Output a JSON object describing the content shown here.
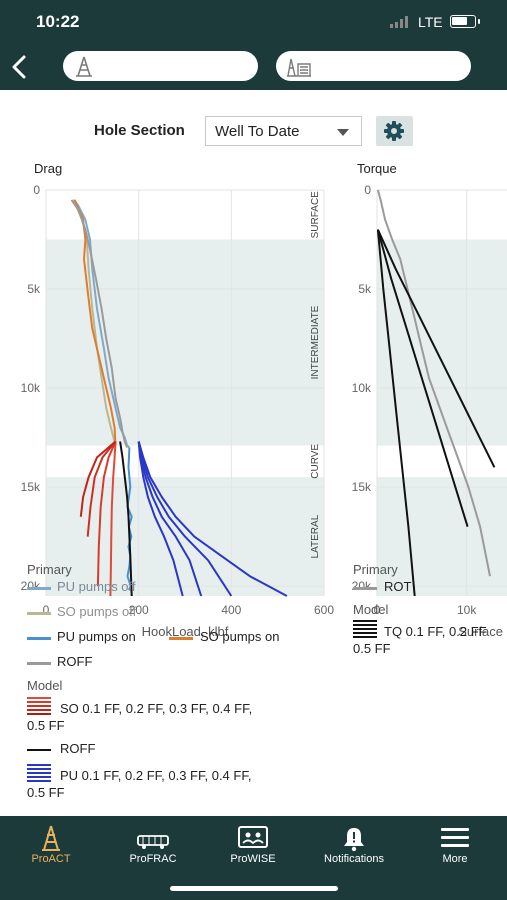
{
  "status_bar": {
    "time": "10:22",
    "network": "LTE"
  },
  "header": {
    "back_icon": "chevron-left-icon",
    "pill_icons": [
      "rig-icon",
      "well-site-icon"
    ]
  },
  "controls": {
    "hole_section_label": "Hole Section",
    "hole_section_value": "Well To Date"
  },
  "chart_data": [
    {
      "type": "line",
      "title": "Drag",
      "xlabel": "HookLoad, klbf",
      "ylabel": "",
      "x_ticks": [
        "0",
        "200",
        "400",
        "600"
      ],
      "y_ticks": [
        "0",
        "5k",
        "10k",
        "15k",
        "20k"
      ],
      "xlim": [
        0,
        600
      ],
      "ylim": [
        20500,
        0
      ],
      "y_reversed": true,
      "grid": true,
      "zones": [
        {
          "name": "SURFACE",
          "depth": [
            0,
            2500
          ]
        },
        {
          "name": "INTERMEDIATE",
          "depth": [
            2500,
            12900
          ]
        },
        {
          "name": "CURVE",
          "depth": [
            12900,
            14500
          ]
        },
        {
          "name": "LATERAL",
          "depth": [
            14500,
            20500
          ]
        }
      ],
      "series": [
        {
          "name": "PU pumps off",
          "color": "#7fa9cc",
          "x": [
            60,
            70,
            85,
            95,
            100,
            110,
            125,
            135,
            150,
            160,
            170,
            175,
            180
          ],
          "y": [
            500,
            800,
            1500,
            2500,
            4000,
            6000,
            8000,
            9500,
            11000,
            12000,
            12500,
            12900,
            13000
          ]
        },
        {
          "name": "SO pumps off",
          "color": "#b9b795",
          "x": [
            58,
            65,
            78,
            88,
            92,
            100,
            110,
            120,
            130,
            140,
            150
          ],
          "y": [
            500,
            800,
            1500,
            2500,
            4000,
            6000,
            8000,
            9500,
            11000,
            12000,
            12900
          ]
        },
        {
          "name": "PU pumps on",
          "color": "#4a90d0",
          "x": [
            180,
            178,
            182,
            176,
            185,
            179,
            184,
            178,
            182,
            180,
            176,
            183,
            179
          ],
          "y": [
            13000,
            14000,
            15000,
            16000,
            16500,
            17000,
            17500,
            18000,
            18500,
            19000,
            19500,
            20000,
            20200
          ]
        },
        {
          "name": "SO pumps on",
          "color": "#e07c2c",
          "x": [
            62,
            80,
            85,
            82,
            92,
            100,
            115,
            130,
            140,
            148,
            150
          ],
          "y": [
            500,
            1500,
            2500,
            3500,
            5500,
            7000,
            8500,
            10000,
            11000,
            12000,
            12900
          ]
        },
        {
          "name": "ROFF",
          "color": "#9a9a9a",
          "x": [
            55,
            70,
            85,
            95,
            108,
            120,
            130,
            142,
            150,
            160,
            165,
            170,
            175
          ],
          "y": [
            500,
            1000,
            2000,
            3000,
            4500,
            6000,
            7500,
            9000,
            10500,
            11500,
            12200,
            12700,
            13000
          ]
        },
        {
          "name": "SO 0.1 FF",
          "color": "#e04a3a",
          "x": [
            150,
            148,
            145,
            142,
            141,
            140,
            139
          ],
          "y": [
            12700,
            13500,
            14500,
            16000,
            17500,
            19000,
            20500
          ]
        },
        {
          "name": "SO 0.2 FF",
          "color": "#d83a2c",
          "x": [
            150,
            135,
            125,
            118,
            114,
            112
          ],
          "y": [
            12700,
            13500,
            14500,
            16000,
            18000,
            20000
          ]
        },
        {
          "name": "SO 0.3 FF",
          "color": "#cf2e22",
          "x": [
            150,
            122,
            105,
            96,
            90
          ],
          "y": [
            12700,
            13500,
            14500,
            16000,
            17500
          ]
        },
        {
          "name": "SO 0.4 FF",
          "color": "#c2231a",
          "x": [
            150,
            110,
            92,
            80,
            75
          ],
          "y": [
            12700,
            13500,
            14500,
            15500,
            16500
          ]
        },
        {
          "name": "ROFF model",
          "color": "#111111",
          "x": [
            160,
            165,
            170,
            175,
            178,
            180,
            182,
            185
          ],
          "y": [
            12700,
            13500,
            14500,
            15500,
            16500,
            17500,
            18500,
            20500
          ]
        },
        {
          "name": "PU 0.1 FF",
          "color": "#2a36c8",
          "x": [
            200,
            210,
            225,
            250,
            280,
            320,
            380,
            440,
            520
          ],
          "y": [
            12700,
            13500,
            14500,
            15500,
            16500,
            17500,
            18500,
            19500,
            20500
          ]
        },
        {
          "name": "PU 0.2 FF",
          "color": "#2a36c8",
          "x": [
            200,
            208,
            220,
            240,
            265,
            300,
            350,
            400
          ],
          "y": [
            12700,
            13500,
            14500,
            15500,
            16500,
            17500,
            18700,
            20500
          ]
        },
        {
          "name": "PU 0.3 FF",
          "color": "#2a36c8",
          "x": [
            200,
            205,
            215,
            230,
            250,
            280,
            310,
            335
          ],
          "y": [
            12700,
            13500,
            14500,
            15500,
            16500,
            17500,
            18700,
            20500
          ]
        },
        {
          "name": "PU 0.4 FF",
          "color": "#2a36c8",
          "x": [
            200,
            203,
            210,
            220,
            235,
            255,
            275,
            295
          ],
          "y": [
            12700,
            13500,
            14500,
            15500,
            16500,
            17500,
            18700,
            20500
          ]
        }
      ]
    },
    {
      "type": "line",
      "title": "Torque",
      "xlabel": "Surface",
      "ylabel": "",
      "x_ticks": [
        "0",
        "10k"
      ],
      "y_ticks": [
        "0",
        "5k",
        "10k",
        "15k",
        "20k"
      ],
      "xlim": [
        0,
        14500
      ],
      "ylim": [
        20500,
        0
      ],
      "y_reversed": true,
      "grid": true,
      "series": [
        {
          "name": "ROT",
          "color": "#9a9a9a",
          "x": [
            100,
            400,
            900,
            1700,
            2600,
            3400,
            4200,
            5000,
            5800,
            6600,
            7400,
            8200,
            9000,
            10200,
            11500,
            12600
          ],
          "y": [
            0,
            500,
            1500,
            2500,
            3500,
            5000,
            6500,
            8000,
            9500,
            10500,
            11500,
            12500,
            13500,
            15000,
            17000,
            19500
          ]
        },
        {
          "name": "TQ 0.1 FF",
          "color": "#111111",
          "x": [
            100,
            2100,
            4300,
            6500,
            8700,
            10900,
            13100
          ],
          "y": [
            2000,
            4000,
            6000,
            8000,
            10000,
            12000,
            14000
          ]
        },
        {
          "name": "TQ 0.2 FF",
          "color": "#111111",
          "x": [
            100,
            1600,
            3300,
            5000,
            6700,
            8400,
            10100
          ],
          "y": [
            2000,
            4500,
            7000,
            9500,
            12000,
            14500,
            17000
          ]
        },
        {
          "name": "TQ 0.5 FF",
          "color": "#111111",
          "x": [
            100,
            700,
            1400,
            2100,
            2800,
            3500,
            4200
          ],
          "y": [
            2000,
            5000,
            8000,
            11000,
            14000,
            17000,
            20500
          ]
        }
      ]
    }
  ],
  "legend_drag": {
    "primary_title": "Primary",
    "pu_pumps_off": "PU pumps off",
    "so_pumps_off": "SO pumps off",
    "pu_pumps_on": "PU pumps on",
    "so_pumps_on": "SO pumps on",
    "roff": "ROFF",
    "model_title": "Model",
    "so_model": "SO  0.1 FF,  0.2 FF,  0.3 FF,  0.4 FF,",
    "so_model_cont": "0.5 FF",
    "roff_model": "ROFF",
    "pu_model": "PU  0.1 FF,  0.2 FF,  0.3 FF,  0.4 FF,",
    "pu_model_cont": "0.5 FF"
  },
  "legend_torque": {
    "primary_title": "Primary",
    "rot": "ROT",
    "model_title": "Model",
    "tq_model": "TQ  0.1 FF,  0.2 FF",
    "tq_model_cont": "0.5 FF"
  },
  "tab_bar": {
    "active": "ProACT",
    "items": [
      {
        "label": "ProACT",
        "icon": "rig-icon"
      },
      {
        "label": "ProFRAC",
        "icon": "truck-icon"
      },
      {
        "label": "ProWISE",
        "icon": "presentation-icon"
      },
      {
        "label": "Notifications",
        "icon": "bell-alert-icon"
      },
      {
        "label": "More",
        "icon": "hamburger-menu-icon"
      }
    ]
  },
  "colors": {
    "nav_background": "#1c3a3a",
    "active_tab": "#e9b25a",
    "zone_shade": "#e6efed",
    "gear_button": "#d9e1e1"
  }
}
